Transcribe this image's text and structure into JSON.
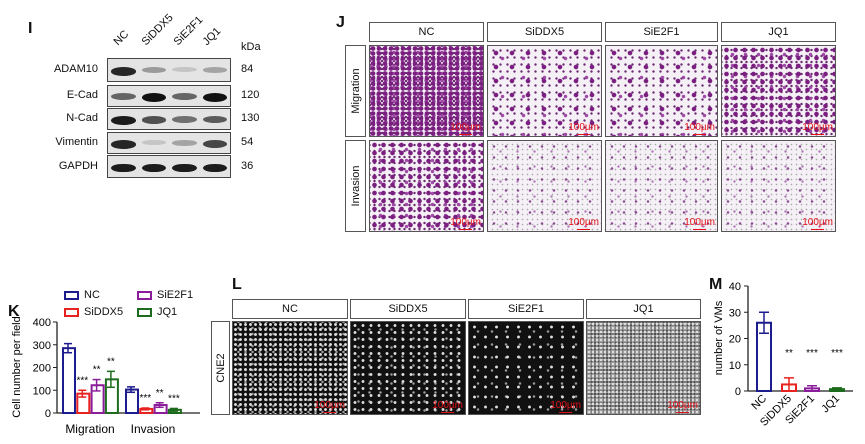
{
  "panels": {
    "I": "I",
    "J": "J",
    "K": "K",
    "L": "L",
    "M": "M"
  },
  "western_blot": {
    "lanes": [
      "NC",
      "SiDDX5",
      "SiE2F1",
      "JQ1"
    ],
    "kda_header": "kDa",
    "rows": [
      {
        "protein": "ADAM10",
        "kda": "84",
        "band_intensity": [
          0.9,
          0.35,
          0.15,
          0.3
        ]
      },
      {
        "protein": "E-Cad",
        "kda": "120",
        "band_intensity": [
          0.6,
          1.0,
          0.6,
          1.0
        ]
      },
      {
        "protein": "N-Cad",
        "kda": "130",
        "band_intensity": [
          0.95,
          0.7,
          0.55,
          0.65
        ]
      },
      {
        "protein": "Vimentin",
        "kda": "54",
        "band_intensity": [
          0.9,
          0.15,
          0.3,
          0.75
        ]
      },
      {
        "protein": "GAPDH",
        "kda": "36",
        "band_intensity": [
          0.95,
          0.95,
          0.95,
          0.95
        ]
      }
    ]
  },
  "transwell": {
    "columns": [
      "NC",
      "SiDDX5",
      "SiE2F1",
      "JQ1"
    ],
    "rows": [
      "Migration",
      "Invasion"
    ],
    "scale_bar": "100µm"
  },
  "tube_formation": {
    "columns": [
      "NC",
      "SiDDX5",
      "SiE2F1",
      "JQ1"
    ],
    "row_label": "CNE2",
    "scale_bar": "100µm"
  },
  "colors": {
    "NC": "#1c1c8e",
    "SiDDX5": "#e8231f",
    "SiE2F1": "#8b1d9b",
    "JQ1": "#1d6b1d"
  },
  "chart_data": [
    {
      "id": "K",
      "type": "bar",
      "title": "",
      "xlabel": "",
      "ylabel": "Cell number per field",
      "categories": [
        "Migration",
        "Invasion"
      ],
      "ylim": [
        0,
        400
      ],
      "yticks": [
        "0",
        "100",
        "200",
        "300",
        "400"
      ],
      "legend": {
        "position": "top",
        "entries": [
          "NC",
          "SiDDX5",
          "SiE2F1",
          "JQ1"
        ]
      },
      "series": [
        {
          "name": "NC",
          "values": [
            285,
            103
          ],
          "errors": [
            20,
            12
          ],
          "sig": [
            "",
            ""
          ]
        },
        {
          "name": "SiDDX5",
          "values": [
            85,
            18
          ],
          "errors": [
            15,
            4
          ],
          "sig": [
            "***",
            "***"
          ]
        },
        {
          "name": "SiE2F1",
          "values": [
            122,
            35
          ],
          "errors": [
            25,
            10
          ],
          "sig": [
            "**",
            "**"
          ]
        },
        {
          "name": "JQ1",
          "values": [
            148,
            14
          ],
          "errors": [
            35,
            6
          ],
          "sig": [
            "**",
            "***"
          ]
        }
      ]
    },
    {
      "id": "M",
      "type": "bar",
      "title": "",
      "xlabel": "",
      "ylabel": "number of VMs",
      "categories": [
        "NC",
        "SiDDX5",
        "SiE2F1",
        "JQ1"
      ],
      "ylim": [
        0,
        40
      ],
      "yticks": [
        "0",
        "10",
        "20",
        "30",
        "40"
      ],
      "values": [
        26,
        2.5,
        1,
        0.7
      ],
      "errors": [
        4,
        2.5,
        1,
        0.5
      ],
      "sig": [
        "",
        "**",
        "***",
        "***"
      ]
    }
  ]
}
